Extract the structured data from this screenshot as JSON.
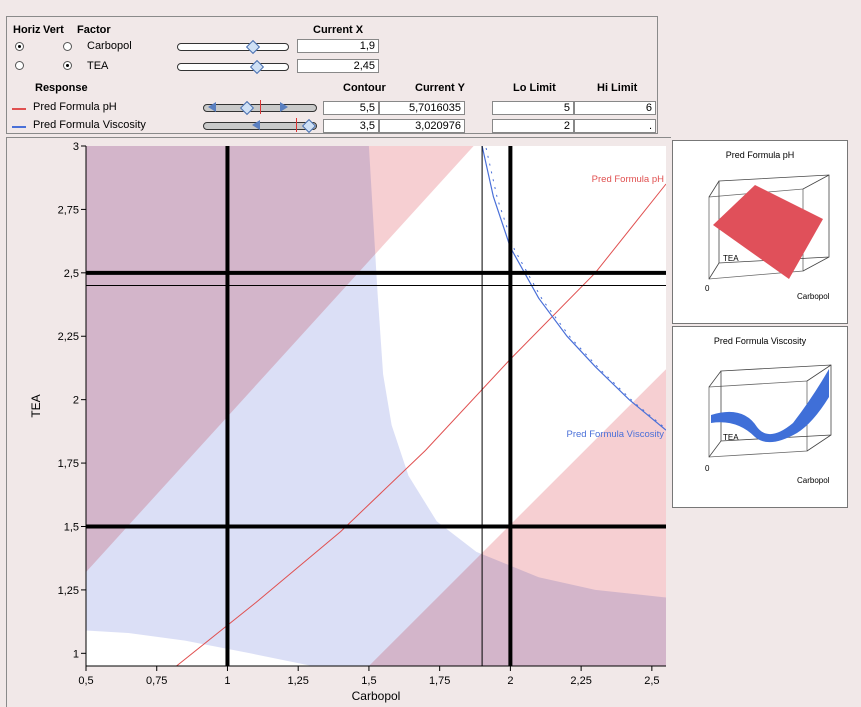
{
  "controls": {
    "headers": {
      "horiz": "Horiz",
      "vert": "Vert",
      "factor": "Factor",
      "current_x": "Current X"
    },
    "factors": [
      {
        "name": "Carbopol",
        "current_x": "1,9",
        "horiz": true,
        "vert": false
      },
      {
        "name": "TEA",
        "current_x": "2,45",
        "horiz": false,
        "vert": true
      }
    ],
    "response_headers": {
      "response": "Response",
      "contour": "Contour",
      "current_y": "Current Y",
      "lo_limit": "Lo Limit",
      "hi_limit": "Hi Limit"
    },
    "responses": [
      {
        "name": "Pred Formula pH",
        "color": "#e05050",
        "contour": "5,5",
        "current_y": "5,7016035",
        "lo_limit": "5",
        "hi_limit": "6"
      },
      {
        "name": "Pred Formula Viscosity",
        "color": "#4a70d8",
        "contour": "3,5",
        "current_y": "3,020976",
        "lo_limit": "2",
        "hi_limit": "."
      }
    ]
  },
  "chart_data": {
    "type": "contour",
    "xlabel": "Carbopol",
    "ylabel": "TEA",
    "xlim": [
      0.5,
      2.55
    ],
    "ylim": [
      0.95,
      3.0
    ],
    "xticks": [
      {
        "v": 0.5,
        "label": "0,5"
      },
      {
        "v": 0.75,
        "label": "0,75"
      },
      {
        "v": 1,
        "label": "1"
      },
      {
        "v": 1.25,
        "label": "1,25"
      },
      {
        "v": 1.5,
        "label": "1,5"
      },
      {
        "v": 1.75,
        "label": "1,75"
      },
      {
        "v": 2,
        "label": "2"
      },
      {
        "v": 2.25,
        "label": "2,25"
      },
      {
        "v": 2.5,
        "label": "2,5"
      }
    ],
    "yticks": [
      {
        "v": 1,
        "label": "1"
      },
      {
        "v": 1.25,
        "label": "1,25"
      },
      {
        "v": 1.5,
        "label": "1,5"
      },
      {
        "v": 1.75,
        "label": "1,75"
      },
      {
        "v": 2,
        "label": "2"
      },
      {
        "v": 2.25,
        "label": "2,25"
      },
      {
        "v": 2.5,
        "label": "2,5"
      },
      {
        "v": 2.75,
        "label": "2,75"
      },
      {
        "v": 3,
        "label": "3"
      }
    ],
    "crosshair": {
      "x": 1.9,
      "y": 2.45
    },
    "limit_lines": {
      "x": [
        1,
        2
      ],
      "y": [
        1.5,
        2.5
      ]
    },
    "colors": {
      "ph_region": "#f6cfd2",
      "visc_region": "#d5d9f5",
      "overlap_region": "#cfb0cc",
      "ph_curve": "#e05050",
      "visc_curve": "#4a70d8"
    },
    "regions": {
      "ph_upper_left": [
        [
          0.5,
          3.0
        ],
        [
          1.87,
          3.0
        ],
        [
          0.5,
          1.32
        ]
      ],
      "ph_lower_right": [
        [
          2.55,
          2.12
        ],
        [
          2.55,
          0.95
        ],
        [
          1.5,
          0.95
        ]
      ],
      "visc_region": [
        [
          0.5,
          3.0
        ],
        [
          1.5,
          3.0
        ],
        [
          1.53,
          2.43
        ],
        [
          1.55,
          2.1
        ],
        [
          1.58,
          1.9
        ],
        [
          1.64,
          1.7
        ],
        [
          1.74,
          1.52
        ],
        [
          1.88,
          1.4
        ],
        [
          2.1,
          1.3
        ],
        [
          2.3,
          1.25
        ],
        [
          2.55,
          1.22
        ],
        [
          2.55,
          0.95
        ],
        [
          1.3,
          0.95
        ],
        [
          1.08,
          1.0
        ],
        [
          0.85,
          1.05
        ],
        [
          0.65,
          1.08
        ],
        [
          0.5,
          1.09
        ]
      ]
    },
    "series": [
      {
        "name": "Pred Formula pH",
        "contour": 5.5,
        "points": [
          [
            0.82,
            0.95
          ],
          [
            1.1,
            1.2
          ],
          [
            1.4,
            1.48
          ],
          [
            1.7,
            1.8
          ],
          [
            2.0,
            2.16
          ],
          [
            2.3,
            2.5
          ],
          [
            2.55,
            2.85
          ]
        ]
      },
      {
        "name": "Pred Formula Viscosity",
        "contour": 3.5,
        "points": [
          [
            1.9,
            3.0
          ],
          [
            1.94,
            2.8
          ],
          [
            2.0,
            2.6
          ],
          [
            2.1,
            2.4
          ],
          [
            2.2,
            2.25
          ],
          [
            2.3,
            2.13
          ],
          [
            2.42,
            2.0
          ],
          [
            2.55,
            1.88
          ]
        ]
      }
    ]
  },
  "surfaces": [
    {
      "title": "Pred Formula pH",
      "axis_x": "Carbopol",
      "axis_y": "TEA",
      "origin": "0",
      "color": "#e0505a"
    },
    {
      "title": "Pred Formula Viscosity",
      "axis_x": "Carbopol",
      "axis_y": "TEA",
      "origin": "0",
      "color": "#3f6fd8"
    }
  ]
}
